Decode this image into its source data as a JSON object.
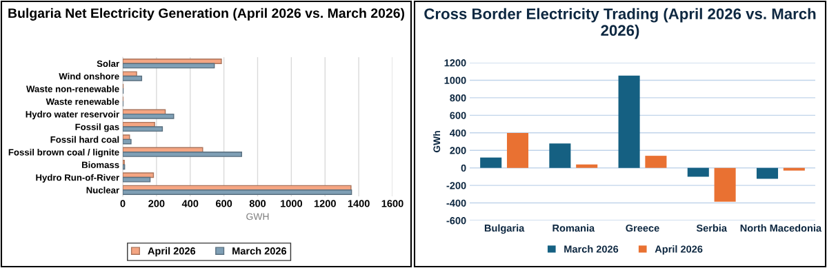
{
  "chart_data": [
    {
      "type": "bar",
      "orientation": "horizontal",
      "title": "Bulgaria Net Electricity Generation (April 2026 vs. March 2026)",
      "xlabel": "GWH",
      "categories": [
        "Solar",
        "Wind onshore",
        "Waste non-renewable",
        "Waste renewable",
        "Hydro water reservoir",
        "Fossil gas",
        "Fossil hard coal",
        "Fossil brown coal / lignite",
        "Biomass",
        "Hydro Run-of-River",
        "Nuclear"
      ],
      "series": [
        {
          "name": "April 2026",
          "color": "#f4a582",
          "values": [
            585,
            82,
            2,
            1,
            252,
            189,
            40,
            474,
            9,
            182,
            1354
          ]
        },
        {
          "name": "March 2026",
          "color": "#7f9fb5",
          "values": [
            543,
            112,
            2,
            1,
            302,
            235,
            49,
            705,
            11,
            162,
            1357
          ]
        }
      ],
      "xlim": [
        0,
        1600
      ],
      "xticks": [
        0,
        200,
        400,
        600,
        800,
        1000,
        1200,
        1400,
        1600
      ],
      "grid": "x",
      "legend": "bottom"
    },
    {
      "type": "bar",
      "title": "Cross Border Electricity Trading (April 2026 vs. March 2026)",
      "ylabel": "GWh",
      "categories": [
        "Bulgaria",
        "Romania",
        "Greece",
        "Serbia",
        "North Macedonia"
      ],
      "series": [
        {
          "name": "March 2026",
          "color": "#156082",
          "values": [
            118,
            278,
            1053,
            -101,
            -125
          ]
        },
        {
          "name": "April 2026",
          "color": "#e97132",
          "values": [
            399,
            39,
            138,
            -385,
            -31
          ]
        }
      ],
      "ylim": [
        -600,
        1200
      ],
      "yticks": [
        -600,
        -400,
        -200,
        0,
        200,
        400,
        600,
        800,
        1000,
        1200
      ],
      "grid": "y",
      "legend": "bottom"
    }
  ]
}
